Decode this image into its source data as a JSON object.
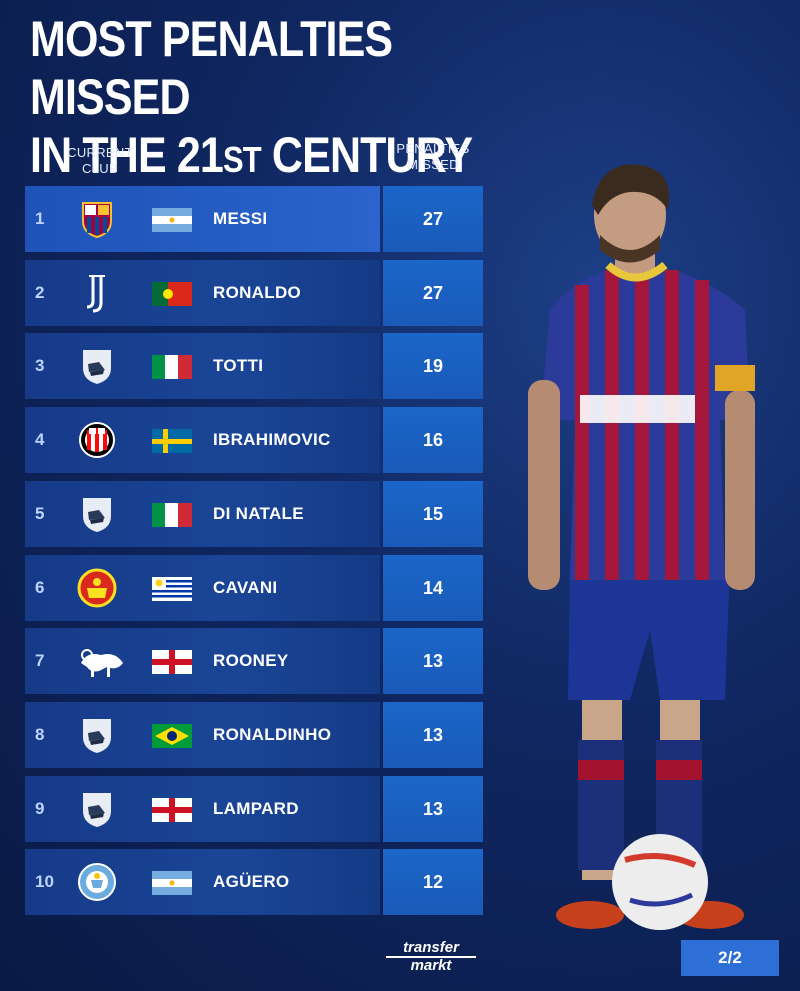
{
  "title": {
    "line1": "MOST PENALTIES MISSED",
    "line2_main": "IN THE 21",
    "line2_sup": "ST",
    "line2_end": " CENTURY"
  },
  "headers": {
    "club_line1": "CURRENT",
    "club_line2": "CLUB",
    "missed_line1": "PENALTIES",
    "missed_line2": "MISSED"
  },
  "rows": [
    {
      "rank": "1",
      "club": "fc-barcelona-crest",
      "flag": "argentina",
      "player": "MESSI",
      "missed": "27"
    },
    {
      "rank": "2",
      "club": "juventus-crest",
      "flag": "portugal",
      "player": "RONALDO",
      "missed": "27"
    },
    {
      "rank": "3",
      "club": "retired-boots-icon",
      "flag": "italy",
      "player": "TOTTI",
      "missed": "19"
    },
    {
      "rank": "4",
      "club": "ac-milan-crest",
      "flag": "sweden",
      "player": "IBRAHIMOVIC",
      "missed": "16"
    },
    {
      "rank": "5",
      "club": "retired-boots-icon",
      "flag": "italy",
      "player": "DI NATALE",
      "missed": "15"
    },
    {
      "rank": "6",
      "club": "manchester-united-crest",
      "flag": "uruguay",
      "player": "CAVANI",
      "missed": "14"
    },
    {
      "rank": "7",
      "club": "derby-county-crest",
      "flag": "england",
      "player": "ROONEY",
      "missed": "13"
    },
    {
      "rank": "8",
      "club": "retired-boots-icon",
      "flag": "brazil",
      "player": "RONALDINHO",
      "missed": "13"
    },
    {
      "rank": "9",
      "club": "retired-boots-icon",
      "flag": "england",
      "player": "LAMPARD",
      "missed": "13"
    },
    {
      "rank": "10",
      "club": "manchester-city-crest",
      "flag": "argentina",
      "player": "AGÜERO",
      "missed": "12"
    }
  ],
  "brand": {
    "line1": "transfer",
    "line2": "markt"
  },
  "page_indicator": "2/2",
  "colors": {
    "background": "#0f2660",
    "row": "#163a88",
    "value_cell": "#1b66c9",
    "page_badge": "#2d6fd6"
  }
}
